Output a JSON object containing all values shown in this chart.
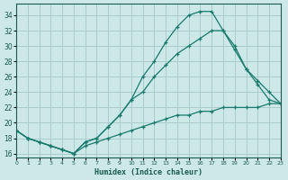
{
  "title": "",
  "xlabel": "Humidex (Indice chaleur)",
  "ylabel": "",
  "bg_color": "#cce8e8",
  "grid_color": "#aacccc",
  "line_color": "#1a7a6e",
  "xlim": [
    0,
    23
  ],
  "ylim": [
    15.5,
    35.5
  ],
  "xticks": [
    0,
    1,
    2,
    3,
    4,
    5,
    6,
    7,
    8,
    9,
    10,
    11,
    12,
    13,
    14,
    15,
    16,
    17,
    18,
    19,
    20,
    21,
    22,
    23
  ],
  "yticks": [
    16,
    18,
    20,
    22,
    24,
    26,
    28,
    30,
    32,
    34
  ],
  "curve1_x": [
    0,
    1,
    2,
    3,
    4,
    5,
    6,
    7,
    8,
    9,
    10,
    11,
    12,
    13,
    14,
    15,
    16,
    17,
    18,
    19,
    20,
    21,
    22,
    23
  ],
  "curve1_y": [
    19,
    18,
    17.5,
    17,
    16.5,
    16,
    17.5,
    18,
    19.5,
    21,
    23,
    26,
    28,
    30.5,
    32.5,
    34,
    34.5,
    34.5,
    32,
    29.5,
    27,
    25,
    23,
    22.5
  ],
  "curve2_x": [
    0,
    1,
    2,
    3,
    4,
    5,
    6,
    7,
    8,
    9,
    10,
    11,
    12,
    13,
    14,
    15,
    16,
    17,
    18,
    19,
    20,
    21,
    22,
    23
  ],
  "curve2_y": [
    19,
    18,
    17.5,
    17,
    16.5,
    16,
    17.5,
    18,
    19.5,
    21,
    23,
    24,
    26,
    27.5,
    29,
    30,
    31,
    32,
    32,
    30,
    27,
    25.5,
    24,
    22.5
  ],
  "curve3_x": [
    0,
    1,
    2,
    3,
    4,
    5,
    6,
    7,
    8,
    9,
    10,
    11,
    12,
    13,
    14,
    15,
    16,
    17,
    18,
    19,
    20,
    21,
    22,
    23
  ],
  "curve3_y": [
    19,
    18,
    17.5,
    17,
    16.5,
    16,
    17,
    17.5,
    18,
    18.5,
    19,
    19.5,
    20,
    20.5,
    21,
    21,
    21.5,
    21.5,
    22,
    22,
    22,
    22,
    22.5,
    22.5
  ]
}
